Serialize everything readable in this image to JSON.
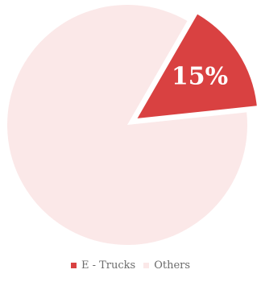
{
  "chart_data": {
    "type": "pie",
    "slices": [
      {
        "name": "E - Trucks",
        "value": 15,
        "label": "15%",
        "color": "#d94141",
        "exploded": true
      },
      {
        "name": "Others",
        "value": 85,
        "label": "",
        "color": "#fbe8e8",
        "exploded": false
      }
    ],
    "legend_position": "bottom"
  }
}
